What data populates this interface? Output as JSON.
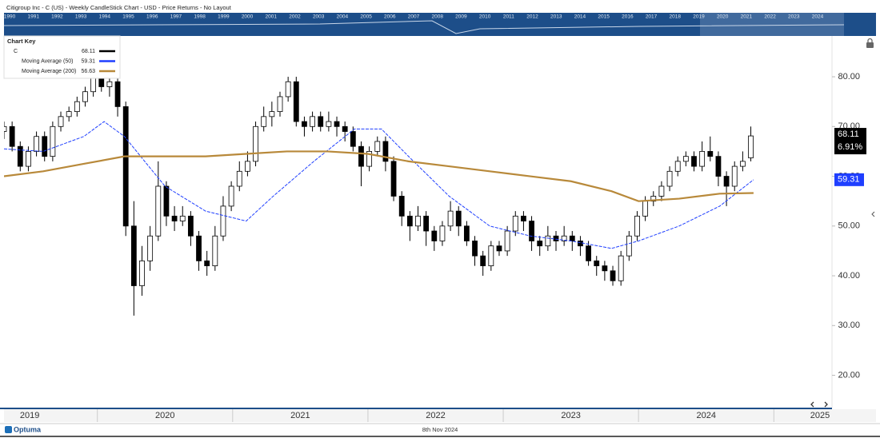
{
  "chart_data": {
    "type": "candlestick",
    "title": "Citigroup Inc - C (US) - Weekly CandleStick Chart - USD - Price Returns - No Layout",
    "navigator": {
      "years": [
        1990,
        1991,
        1992,
        1993,
        1994,
        1995,
        1996,
        1997,
        1998,
        1999,
        2000,
        2001,
        2002,
        2003,
        2004,
        2005,
        2006,
        2007,
        2008,
        2009,
        2010,
        2011,
        2012,
        2013,
        2014,
        2015,
        2016,
        2017,
        2018,
        2019,
        2020,
        2021,
        2022,
        2023,
        2024
      ]
    },
    "legend_title": "Chart Key",
    "xlim": [
      2019.31,
      2025.43
    ],
    "ylim": [
      13.5,
      88.2
    ],
    "yticks": [
      {
        "value": 20,
        "label": "20.00"
      },
      {
        "value": 30,
        "label": "30.00"
      },
      {
        "value": 40,
        "label": "40.00"
      },
      {
        "value": 50,
        "label": "50.00"
      },
      {
        "value": 60,
        "label": "60.00"
      },
      {
        "value": 70,
        "label": "70.00"
      },
      {
        "value": 80,
        "label": "80.00"
      }
    ],
    "xticks": [
      {
        "value": 2019.5,
        "label": "2019"
      },
      {
        "value": 2020.5,
        "label": "2020"
      },
      {
        "value": 2021.5,
        "label": "2021"
      },
      {
        "value": 2022.5,
        "label": "2022"
      },
      {
        "value": 2023.5,
        "label": "2023"
      },
      {
        "value": 2024.5,
        "label": "2024"
      },
      {
        "value": 2025.5,
        "label": "2025"
      }
    ],
    "grid": false,
    "name": "C",
    "color": "#000000",
    "up_color": "#ffffff",
    "down_color": "#000000",
    "last_change": "6.91%",
    "x": [
      2019.31,
      2019.37,
      2019.43,
      2019.49,
      2019.55,
      2019.61,
      2019.67,
      2019.73,
      2019.79,
      2019.85,
      2019.91,
      2019.97,
      2020.03,
      2020.09,
      2020.15,
      2020.21,
      2020.27,
      2020.33,
      2020.39,
      2020.45,
      2020.51,
      2020.57,
      2020.63,
      2020.69,
      2020.75,
      2020.81,
      2020.87,
      2020.93,
      2020.99,
      2021.05,
      2021.11,
      2021.17,
      2021.23,
      2021.29,
      2021.35,
      2021.41,
      2021.47,
      2021.53,
      2021.59,
      2021.65,
      2021.71,
      2021.77,
      2021.83,
      2021.89,
      2021.95,
      2022.01,
      2022.07,
      2022.13,
      2022.19,
      2022.25,
      2022.31,
      2022.37,
      2022.43,
      2022.49,
      2022.55,
      2022.61,
      2022.67,
      2022.73,
      2022.79,
      2022.85,
      2022.91,
      2022.97,
      2023.03,
      2023.09,
      2023.15,
      2023.21,
      2023.27,
      2023.33,
      2023.39,
      2023.45,
      2023.51,
      2023.57,
      2023.63,
      2023.69,
      2023.75,
      2023.81,
      2023.87,
      2023.93,
      2023.99,
      2024.05,
      2024.11,
      2024.17,
      2024.23,
      2024.29,
      2024.35,
      2024.41,
      2024.47,
      2024.53,
      2024.59,
      2024.65,
      2024.71,
      2024.77,
      2024.83
    ],
    "ohlc": [
      [
        69,
        71,
        67.5,
        70
      ],
      [
        70,
        71,
        65,
        66
      ],
      [
        66,
        67,
        61,
        62
      ],
      [
        62,
        66,
        61,
        65
      ],
      [
        65,
        69,
        64,
        68
      ],
      [
        68,
        69,
        63,
        64
      ],
      [
        64,
        71,
        63,
        70
      ],
      [
        70,
        73,
        69,
        72
      ],
      [
        72,
        74,
        71,
        73
      ],
      [
        73,
        76,
        72,
        75
      ],
      [
        75,
        78,
        74,
        77
      ],
      [
        77,
        81,
        76,
        80
      ],
      [
        80,
        81,
        77,
        78
      ],
      [
        78,
        80,
        76,
        79
      ],
      [
        79,
        80,
        72,
        74
      ],
      [
        74,
        75,
        48,
        50
      ],
      [
        50,
        55,
        32,
        38
      ],
      [
        38,
        46,
        36,
        43
      ],
      [
        43,
        50,
        41,
        48
      ],
      [
        48,
        63,
        47,
        58
      ],
      [
        58,
        59,
        50,
        52
      ],
      [
        52,
        54,
        49,
        51
      ],
      [
        51,
        54,
        50,
        52
      ],
      [
        52,
        53,
        46,
        48
      ],
      [
        48,
        49,
        41,
        43
      ],
      [
        43,
        45,
        40,
        42
      ],
      [
        42,
        50,
        41,
        48
      ],
      [
        48,
        56,
        47,
        54
      ],
      [
        54,
        59,
        53,
        58
      ],
      [
        58,
        63,
        57,
        61
      ],
      [
        61,
        65,
        60,
        63
      ],
      [
        63,
        71,
        62,
        70
      ],
      [
        70,
        74,
        69,
        72
      ],
      [
        72,
        75,
        70,
        73
      ],
      [
        73,
        77,
        72,
        76
      ],
      [
        76,
        80,
        75,
        79
      ],
      [
        79,
        80,
        70,
        71
      ],
      [
        71,
        72,
        68,
        70
      ],
      [
        70,
        73,
        69,
        72
      ],
      [
        72,
        73,
        69,
        70
      ],
      [
        70,
        73,
        69,
        71
      ],
      [
        71,
        72,
        68,
        70
      ],
      [
        70,
        71,
        67,
        69
      ],
      [
        69,
        70,
        65,
        66
      ],
      [
        66,
        67,
        58,
        62
      ],
      [
        62,
        66,
        61,
        65
      ],
      [
        65,
        68,
        64,
        67
      ],
      [
        67,
        68,
        61,
        63
      ],
      [
        63,
        64,
        55,
        56
      ],
      [
        56,
        57,
        50,
        52
      ],
      [
        52,
        53,
        47,
        50
      ],
      [
        50,
        54,
        49,
        52
      ],
      [
        52,
        53,
        46,
        49
      ],
      [
        49,
        50,
        45,
        47
      ],
      [
        47,
        51,
        46,
        50
      ],
      [
        50,
        55,
        49,
        53
      ],
      [
        53,
        54,
        48,
        50
      ],
      [
        50,
        51,
        46,
        47
      ],
      [
        47,
        48,
        42,
        44
      ],
      [
        44,
        45,
        40,
        42
      ],
      [
        42,
        47,
        41,
        46
      ],
      [
        46,
        47,
        44,
        45
      ],
      [
        45,
        50,
        44,
        49
      ],
      [
        49,
        53,
        48,
        52
      ],
      [
        52,
        53,
        49,
        51
      ],
      [
        51,
        52,
        45,
        47
      ],
      [
        47,
        48,
        44,
        46
      ],
      [
        46,
        50,
        45,
        48
      ],
      [
        48,
        49,
        45,
        47
      ],
      [
        47,
        50,
        46,
        48
      ],
      [
        48,
        49,
        45,
        47
      ],
      [
        47,
        48,
        44,
        46
      ],
      [
        46,
        47,
        42,
        43
      ],
      [
        43,
        44,
        40,
        42
      ],
      [
        42,
        43,
        39,
        41
      ],
      [
        41,
        42,
        38,
        39
      ],
      [
        39,
        45,
        38,
        44
      ],
      [
        44,
        49,
        43,
        48
      ],
      [
        48,
        53,
        47,
        52
      ],
      [
        52,
        56,
        51,
        55
      ],
      [
        55,
        57,
        54,
        56
      ],
      [
        56,
        59,
        55,
        58
      ],
      [
        58,
        62,
        57,
        61
      ],
      [
        61,
        64,
        60,
        63
      ],
      [
        63,
        65,
        62,
        64
      ],
      [
        64,
        65,
        61,
        62
      ],
      [
        62,
        67,
        61,
        65
      ],
      [
        65,
        68,
        63,
        64
      ],
      [
        64,
        65,
        58,
        60
      ],
      [
        60,
        61,
        54,
        58
      ],
      [
        58,
        63,
        57,
        62
      ],
      [
        62,
        65,
        61,
        63
      ],
      [
        63.7,
        70,
        63,
        68.11
      ]
    ],
    "series": [
      {
        "name": "Moving Average (50)",
        "color": "#1f3fff",
        "x": [
          2019.31,
          2019.6,
          2019.9,
          2020.05,
          2020.2,
          2020.5,
          2020.8,
          2021.1,
          2021.3,
          2021.6,
          2021.9,
          2022.1,
          2022.3,
          2022.6,
          2022.9,
          2023.2,
          2023.5,
          2023.8,
          2024.0,
          2024.3,
          2024.6,
          2024.85
        ],
        "values": [
          65.5,
          65,
          68,
          71,
          68,
          58,
          53,
          51,
          56,
          63,
          69.5,
          69.5,
          64,
          56,
          50,
          48,
          47,
          45.5,
          47,
          50,
          54,
          59.31
        ]
      },
      {
        "name": "Moving Average (200)",
        "color": "#b8893a",
        "x": [
          2019.31,
          2019.6,
          2019.9,
          2020.2,
          2020.5,
          2020.8,
          2021.1,
          2021.4,
          2021.7,
          2022.0,
          2022.3,
          2022.6,
          2022.9,
          2023.2,
          2023.5,
          2023.8,
          2024.0,
          2024.3,
          2024.6,
          2024.85
        ],
        "values": [
          60,
          61,
          62.5,
          64,
          64,
          64,
          64.5,
          65,
          65,
          64.5,
          63,
          62,
          61,
          60,
          59,
          57,
          55,
          55.5,
          56.5,
          56.63
        ]
      }
    ]
  },
  "footer": {
    "brand": "Optuma",
    "date": "8th Nov 2024"
  }
}
